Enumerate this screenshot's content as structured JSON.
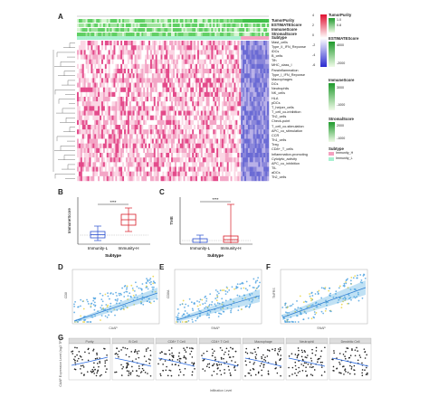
{
  "panels": {
    "A": "A",
    "B": "B",
    "C": "C",
    "D": "D",
    "E": "E",
    "F": "F",
    "G": "G"
  },
  "annotation_tracks": [
    "TumorPurity",
    "ESTIMATEScore",
    "ImmuneScore",
    "StromalScore",
    "Subtype"
  ],
  "heatmap_rows": [
    "Mast_cells",
    "Type_II_IFN_Reponse",
    "iDCs",
    "B_cells",
    "Tfh",
    "MHC_class_I",
    "Parainflammation",
    "Type_I_IFN_Reponse",
    "Macrophages",
    "DCs",
    "Neutrophils",
    "NK_cells",
    "HLA",
    "pDCs",
    "T_helper_cells",
    "T_cell_co-inhibition",
    "Th2_cells",
    "Check-point",
    "T_cell_co-stimulation",
    "APC_co_stimulation",
    "CCR",
    "Th1_cells",
    "Treg",
    "CD8+_T_cells",
    "Inflammation-promoting",
    "Cytolytic_activity",
    "APC_co_inhibition",
    "TIL",
    "aDCs",
    "Th2_cells"
  ],
  "legend": {
    "main_ticks": [
      "4",
      "2",
      "0",
      "-2",
      "-4",
      "-6"
    ],
    "tumor_purity": {
      "title": "TumorPurity",
      "ticks": [
        "1.0",
        "0.8",
        "0.6",
        "0.4"
      ]
    },
    "estimate": {
      "title": "ESTIMATEScore",
      "ticks": [
        "4000",
        "2000",
        "0",
        "-2000"
      ]
    },
    "immune": {
      "title": "ImmuneScore",
      "ticks": [
        "3000",
        "1000",
        "-1000"
      ]
    },
    "stromal": {
      "title": "StromalScore",
      "ticks": [
        "2000",
        "0",
        "-1000"
      ]
    },
    "subtype": {
      "title": "Subtype",
      "items": [
        "Immunity_H",
        "Immunity_L"
      ]
    }
  },
  "colors": {
    "low": "#2a2ad0",
    "high": "#e0306a",
    "green": "#2fb53a",
    "subtype_h": "#f4a0c0",
    "subtype_l": "#a8f0d0",
    "box": "#2a4fd0",
    "box_red": "#d81e2a"
  },
  "panel_B": {
    "ylabel": "ImmuneScore",
    "xlabel": "Subtype",
    "groups": [
      "Immunity-L",
      "Immunity-H"
    ],
    "sig": "****"
  },
  "panel_C": {
    "ylabel": "TMB",
    "xlabel": "Subtype",
    "groups": [
      "Immunity-L",
      "Immunity-H"
    ],
    "sig": "****"
  },
  "scatter": {
    "D": {
      "ylabel": "CD8",
      "xlabel": "CAAP"
    },
    "E": {
      "ylabel": "CD8A",
      "xlabel": "SNAP"
    },
    "F": {
      "ylabel": "TNFRS",
      "xlabel": "SNAP"
    }
  },
  "panel_G": {
    "ylabel": "CAAP Expression Level (log2 TPM)",
    "xlabel": "Infiltration Level",
    "facets": [
      "Purity",
      "B Cell",
      "CD8+ T Cell",
      "CD4+ T Cell",
      "Macrophage",
      "Neutrophil",
      "Dendritic Cell"
    ]
  }
}
